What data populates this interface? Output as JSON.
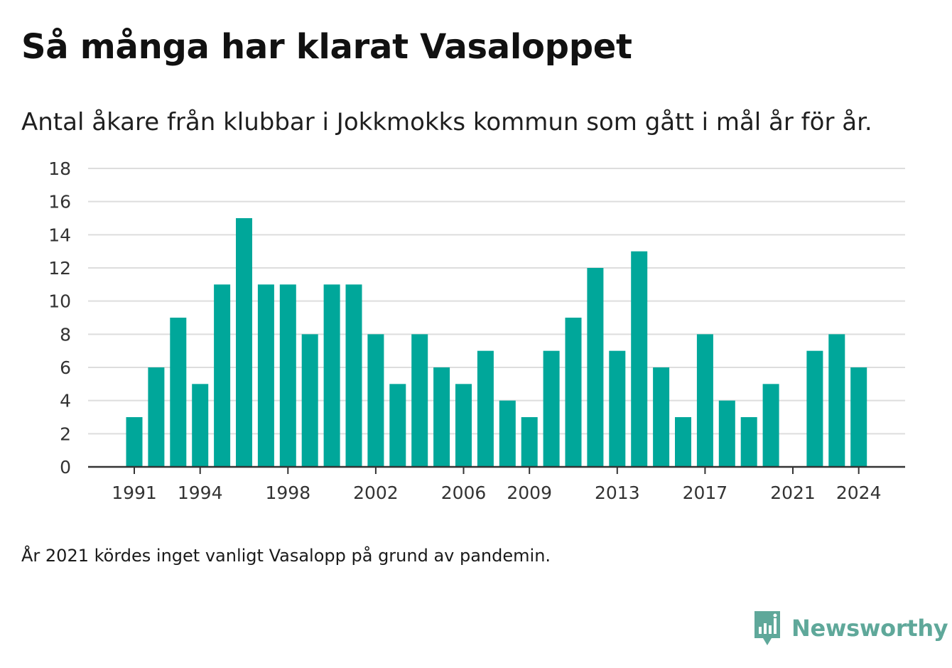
{
  "title": "Så många har klarat Vasaloppet",
  "subtitle": "Antal åkare från klubbar i Jokkmokks kommun som gått i mål år för år.",
  "footnote": "År 2021 kördes inget vanligt Vasalopp på grund av pandemin.",
  "brand": {
    "name": "Newsworthy",
    "icon": "newsworthy-logo-icon",
    "color": "#5fa89a"
  },
  "colors": {
    "bar": "#00a79a",
    "grid": "#dddddd",
    "axis": "#333333"
  },
  "chart_data": {
    "type": "bar",
    "categories": [
      1991,
      1992,
      1993,
      1994,
      1995,
      1996,
      1997,
      1998,
      1999,
      2000,
      2001,
      2002,
      2003,
      2004,
      2005,
      2006,
      2007,
      2008,
      2009,
      2010,
      2011,
      2012,
      2013,
      2014,
      2015,
      2016,
      2017,
      2018,
      2019,
      2020,
      2021,
      2022,
      2023,
      2024
    ],
    "values": [
      3,
      6,
      9,
      5,
      11,
      15,
      11,
      11,
      8,
      11,
      11,
      8,
      5,
      8,
      6,
      5,
      7,
      4,
      3,
      7,
      9,
      12,
      7,
      13,
      6,
      3,
      8,
      4,
      3,
      5,
      0,
      7,
      8,
      6
    ],
    "x_tick_labels": [
      "1991",
      "1994",
      "1998",
      "2002",
      "2006",
      "2009",
      "2013",
      "2017",
      "2021",
      "2024"
    ],
    "y_ticks": [
      0,
      2,
      4,
      6,
      8,
      10,
      12,
      14,
      16,
      18
    ],
    "ylim": [
      0,
      18
    ],
    "xlabel": "",
    "ylabel": "",
    "grid": true
  }
}
